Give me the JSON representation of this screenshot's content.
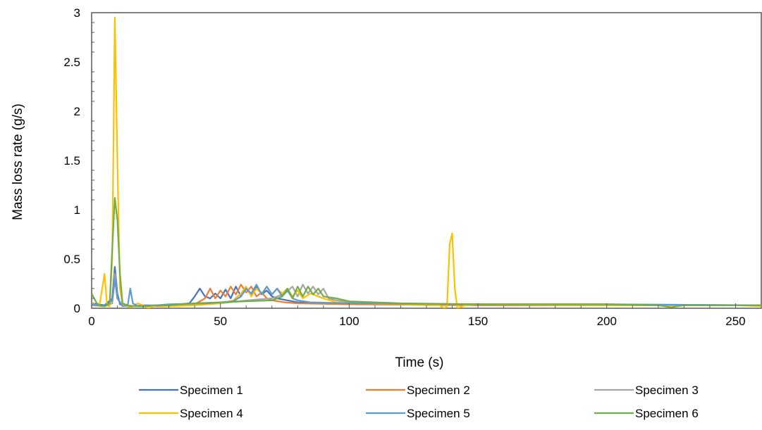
{
  "chart_data": {
    "type": "line",
    "title": "",
    "xlabel": "Time (s)",
    "ylabel": "Mass loss rate  (g/s)",
    "xlim": [
      0,
      260
    ],
    "ylim": [
      0,
      3
    ],
    "x_ticks": [
      0,
      50,
      100,
      150,
      200,
      250
    ],
    "y_ticks": [
      0,
      0.5,
      1,
      1.5,
      2,
      2.5,
      3
    ],
    "x_tick_labels": [
      "0",
      "50",
      "100",
      "150",
      "200",
      "250"
    ],
    "y_tick_labels": [
      "0",
      "0.5",
      "1",
      "1.5",
      "2",
      "2.5",
      "3"
    ],
    "grid": false,
    "legend_position": "bottom",
    "series": [
      {
        "name": "Specimen 1",
        "color": "#4472C4",
        "points": [
          [
            0,
            0.05
          ],
          [
            5,
            0.03
          ],
          [
            8,
            0.1
          ],
          [
            9,
            0.42
          ],
          [
            10,
            0.15
          ],
          [
            11,
            0.04
          ],
          [
            15,
            0.02
          ],
          [
            20,
            0.03
          ],
          [
            30,
            0.03
          ],
          [
            38,
            0.05
          ],
          [
            40,
            0.12
          ],
          [
            42,
            0.2
          ],
          [
            44,
            0.12
          ],
          [
            46,
            0.1
          ],
          [
            48,
            0.15
          ],
          [
            50,
            0.1
          ],
          [
            52,
            0.19
          ],
          [
            54,
            0.1
          ],
          [
            56,
            0.22
          ],
          [
            58,
            0.12
          ],
          [
            60,
            0.2
          ],
          [
            62,
            0.13
          ],
          [
            64,
            0.22
          ],
          [
            66,
            0.14
          ],
          [
            68,
            0.18
          ],
          [
            70,
            0.12
          ],
          [
            72,
            0.1
          ],
          [
            76,
            0.08
          ],
          [
            80,
            0.06
          ],
          [
            90,
            0.05
          ],
          [
            100,
            0.04
          ],
          [
            120,
            0.04
          ],
          [
            150,
            0.04
          ],
          [
            200,
            0.03
          ],
          [
            230,
            0.03
          ],
          [
            260,
            0.03
          ]
        ]
      },
      {
        "name": "Specimen 2",
        "color": "#ED7D31",
        "points": [
          [
            0,
            0.03
          ],
          [
            5,
            0.02
          ],
          [
            8,
            0.05
          ],
          [
            9,
            0.3
          ],
          [
            10,
            0.1
          ],
          [
            12,
            0.03
          ],
          [
            20,
            0.02
          ],
          [
            30,
            0.02
          ],
          [
            40,
            0.04
          ],
          [
            44,
            0.1
          ],
          [
            46,
            0.2
          ],
          [
            48,
            0.1
          ],
          [
            50,
            0.18
          ],
          [
            52,
            0.12
          ],
          [
            54,
            0.22
          ],
          [
            56,
            0.14
          ],
          [
            58,
            0.24
          ],
          [
            60,
            0.16
          ],
          [
            62,
            0.22
          ],
          [
            64,
            0.12
          ],
          [
            66,
            0.16
          ],
          [
            68,
            0.1
          ],
          [
            70,
            0.08
          ],
          [
            75,
            0.06
          ],
          [
            80,
            0.05
          ],
          [
            100,
            0.04
          ],
          [
            150,
            0.03
          ],
          [
            200,
            0.03
          ],
          [
            260,
            0.03
          ]
        ]
      },
      {
        "name": "Specimen 3",
        "color": "#A5A5A5",
        "points": [
          [
            0,
            0.03
          ],
          [
            5,
            0.02
          ],
          [
            8,
            0.05
          ],
          [
            9,
            0.35
          ],
          [
            10,
            0.1
          ],
          [
            12,
            0.03
          ],
          [
            20,
            0.02
          ],
          [
            30,
            0.03
          ],
          [
            50,
            0.05
          ],
          [
            60,
            0.08
          ],
          [
            70,
            0.1
          ],
          [
            75,
            0.15
          ],
          [
            78,
            0.22
          ],
          [
            80,
            0.12
          ],
          [
            82,
            0.24
          ],
          [
            84,
            0.15
          ],
          [
            86,
            0.22
          ],
          [
            88,
            0.14
          ],
          [
            90,
            0.2
          ],
          [
            92,
            0.1
          ],
          [
            95,
            0.08
          ],
          [
            100,
            0.06
          ],
          [
            110,
            0.05
          ],
          [
            150,
            0.04
          ],
          [
            200,
            0.04
          ],
          [
            260,
            0.03
          ]
        ]
      },
      {
        "name": "Specimen 4",
        "color": "#FFC000",
        "points": [
          [
            0,
            0.05
          ],
          [
            3,
            0.02
          ],
          [
            5,
            0.35
          ],
          [
            6,
            0.03
          ],
          [
            7,
            0.02
          ],
          [
            8,
            0.5
          ],
          [
            9,
            2.95
          ],
          [
            10,
            1.5
          ],
          [
            11,
            0.2
          ],
          [
            12,
            0.03
          ],
          [
            15,
            0.01
          ],
          [
            18,
            0.05
          ],
          [
            20,
            0.03
          ],
          [
            22,
            0.0
          ],
          [
            25,
            0.03
          ],
          [
            30,
            0.02
          ],
          [
            40,
            0.03
          ],
          [
            50,
            0.05
          ],
          [
            55,
            0.08
          ],
          [
            58,
            0.15
          ],
          [
            60,
            0.22
          ],
          [
            62,
            0.12
          ],
          [
            64,
            0.2
          ],
          [
            66,
            0.15
          ],
          [
            68,
            0.22
          ],
          [
            70,
            0.14
          ],
          [
            72,
            0.2
          ],
          [
            74,
            0.15
          ],
          [
            76,
            0.2
          ],
          [
            78,
            0.12
          ],
          [
            80,
            0.18
          ],
          [
            82,
            0.1
          ],
          [
            85,
            0.15
          ],
          [
            88,
            0.12
          ],
          [
            90,
            0.1
          ],
          [
            95,
            0.06
          ],
          [
            100,
            0.05
          ],
          [
            120,
            0.04
          ],
          [
            130,
            0.03
          ],
          [
            135,
            0.03
          ],
          [
            137,
            0.0
          ],
          [
            138,
            0.02
          ],
          [
            139,
            0.65
          ],
          [
            140,
            0.76
          ],
          [
            141,
            0.2
          ],
          [
            142,
            0.0
          ],
          [
            145,
            0.03
          ],
          [
            150,
            0.04
          ],
          [
            200,
            0.03
          ],
          [
            250,
            0.03
          ],
          [
            260,
            0.02
          ]
        ]
      },
      {
        "name": "Specimen 5",
        "color": "#5B9BD5",
        "points": [
          [
            0,
            0.04
          ],
          [
            5,
            0.02
          ],
          [
            8,
            0.08
          ],
          [
            9,
            0.3
          ],
          [
            10,
            0.1
          ],
          [
            12,
            0.02
          ],
          [
            14,
            0.03
          ],
          [
            15,
            0.2
          ],
          [
            16,
            0.05
          ],
          [
            18,
            0.02
          ],
          [
            25,
            0.03
          ],
          [
            30,
            0.04
          ],
          [
            45,
            0.05
          ],
          [
            55,
            0.07
          ],
          [
            58,
            0.12
          ],
          [
            60,
            0.2
          ],
          [
            62,
            0.15
          ],
          [
            64,
            0.24
          ],
          [
            66,
            0.14
          ],
          [
            68,
            0.22
          ],
          [
            70,
            0.14
          ],
          [
            72,
            0.2
          ],
          [
            74,
            0.12
          ],
          [
            76,
            0.18
          ],
          [
            78,
            0.1
          ],
          [
            80,
            0.08
          ],
          [
            85,
            0.06
          ],
          [
            100,
            0.05
          ],
          [
            150,
            0.04
          ],
          [
            200,
            0.04
          ],
          [
            260,
            0.03
          ]
        ]
      },
      {
        "name": "Specimen 6",
        "color": "#70AD47",
        "points": [
          [
            0,
            0.15
          ],
          [
            2,
            0.05
          ],
          [
            4,
            0.02
          ],
          [
            6,
            0.03
          ],
          [
            7,
            0.05
          ],
          [
            8,
            0.6
          ],
          [
            9,
            1.12
          ],
          [
            10,
            0.9
          ],
          [
            11,
            0.35
          ],
          [
            12,
            0.05
          ],
          [
            15,
            0.02
          ],
          [
            20,
            0.02
          ],
          [
            25,
            0.03
          ],
          [
            30,
            0.03
          ],
          [
            40,
            0.05
          ],
          [
            50,
            0.06
          ],
          [
            60,
            0.07
          ],
          [
            70,
            0.08
          ],
          [
            74,
            0.12
          ],
          [
            76,
            0.2
          ],
          [
            78,
            0.1
          ],
          [
            80,
            0.22
          ],
          [
            82,
            0.12
          ],
          [
            84,
            0.22
          ],
          [
            86,
            0.14
          ],
          [
            88,
            0.2
          ],
          [
            90,
            0.12
          ],
          [
            95,
            0.1
          ],
          [
            100,
            0.07
          ],
          [
            110,
            0.06
          ],
          [
            120,
            0.05
          ],
          [
            150,
            0.04
          ],
          [
            200,
            0.04
          ],
          [
            220,
            0.03
          ],
          [
            225,
            0.01
          ],
          [
            230,
            0.03
          ],
          [
            260,
            0.03
          ]
        ]
      }
    ]
  }
}
